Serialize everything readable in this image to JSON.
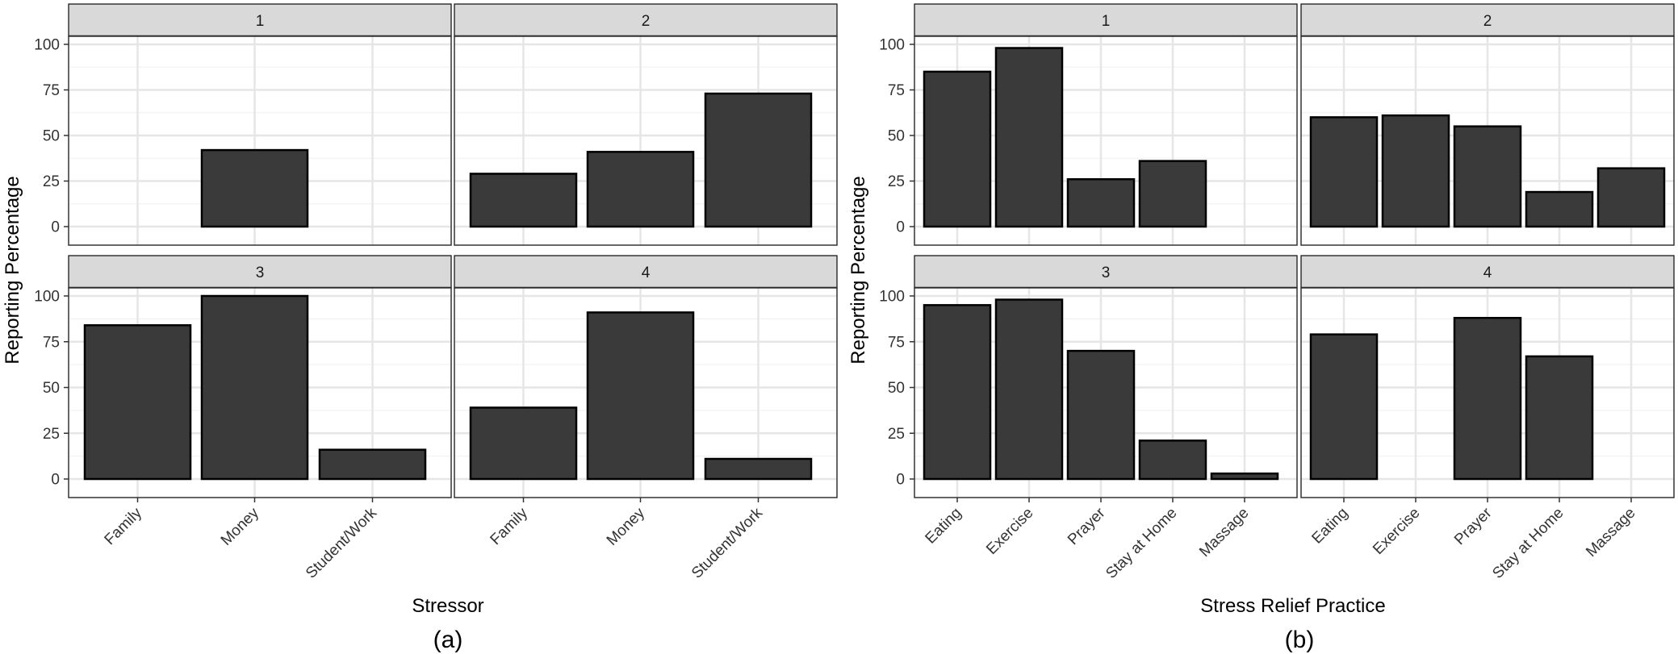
{
  "chart_data": [
    {
      "type": "bar",
      "caption": "(a)",
      "xlabel": "Stressor",
      "ylabel": "Reporting Percentage",
      "categories": [
        "Family",
        "Money",
        "Student/Work"
      ],
      "ylim": [
        0,
        105
      ],
      "yticks": [
        0,
        25,
        50,
        75,
        100
      ],
      "grid": true,
      "facets": [
        {
          "label": "1",
          "values": [
            0,
            42,
            0
          ]
        },
        {
          "label": "2",
          "values": [
            29,
            41,
            73
          ]
        },
        {
          "label": "3",
          "values": [
            84,
            100,
            16
          ]
        },
        {
          "label": "4",
          "values": [
            39,
            91,
            11
          ]
        }
      ]
    },
    {
      "type": "bar",
      "caption": "(b)",
      "xlabel": "Stress Relief Practice",
      "ylabel": "Reporting Percentage",
      "categories": [
        "Eating",
        "Exercise",
        "Prayer",
        "Stay at Home",
        "Massage"
      ],
      "ylim": [
        0,
        105
      ],
      "yticks": [
        0,
        25,
        50,
        75,
        100
      ],
      "grid": true,
      "facets": [
        {
          "label": "1",
          "values": [
            85,
            98,
            26,
            36,
            0
          ]
        },
        {
          "label": "2",
          "values": [
            60,
            61,
            55,
            19,
            32
          ]
        },
        {
          "label": "3",
          "values": [
            95,
            98,
            70,
            21,
            3
          ]
        },
        {
          "label": "4",
          "values": [
            79,
            0,
            88,
            67,
            0
          ]
        }
      ]
    }
  ]
}
